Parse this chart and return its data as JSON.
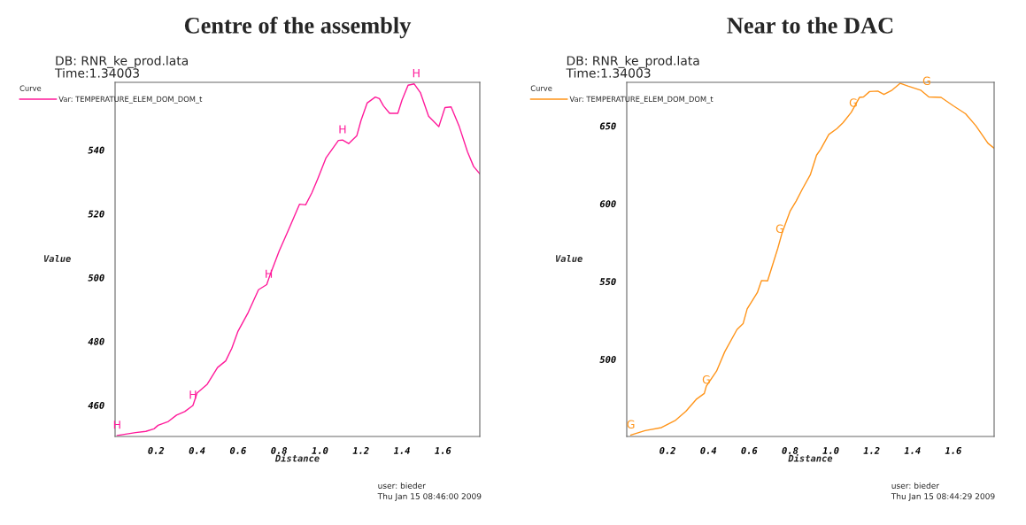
{
  "chart_data": [
    {
      "type": "line",
      "title": "Centre of the assembly",
      "xlabel": "Distance",
      "ylabel": "Value",
      "legend_title": "Curve",
      "legend": "top left",
      "grid": false,
      "xlim": [
        0,
        1.78
      ],
      "xticks": [
        0.2,
        0.4,
        0.6,
        0.8,
        {
          "value": 1,
          "label": "1.0"
        },
        1.2,
        1.4,
        1.6
      ],
      "ylim": [
        450.2,
        561.2
      ],
      "yticks": [
        460,
        480,
        500,
        520,
        540
      ],
      "x": [
        0.01,
        0.1,
        0.15,
        0.19,
        0.21,
        0.26,
        0.3,
        0.34,
        0.38,
        0.4,
        0.45,
        0.5,
        0.54,
        0.57,
        0.6,
        0.65,
        0.7,
        0.74,
        0.755,
        0.8,
        0.84,
        0.9,
        0.93,
        0.96,
        0.99,
        1.03,
        1.09,
        1.11,
        1.14,
        1.18,
        1.2,
        1.23,
        1.27,
        1.29,
        1.31,
        1.34,
        1.38,
        1.4,
        1.43,
        1.46,
        1.49,
        1.53,
        1.58,
        1.61,
        1.64,
        1.68,
        1.72,
        1.75,
        1.78
      ],
      "series": [
        {
          "name": "Var: TEMPERATURE_ELEM_DOM_DOM_t",
          "color": "#ff1a9a",
          "values": [
            450.5,
            451.4,
            451.8,
            452.6,
            453.7,
            454.9,
            456.9,
            458.0,
            459.9,
            463.8,
            466.6,
            471.8,
            473.9,
            477.9,
            483.2,
            489.1,
            496.2,
            497.8,
            500.6,
            508.2,
            514.0,
            523.0,
            522.8,
            526.5,
            531.1,
            537.6,
            543.0,
            543.1,
            542.0,
            544.5,
            549.2,
            554.7,
            556.6,
            556.1,
            553.8,
            551.5,
            551.5,
            555.6,
            560.3,
            560.7,
            558.0,
            550.6,
            547.3,
            553.3,
            553.5,
            547.3,
            539.4,
            534.8,
            532.5
          ]
        }
      ],
      "annotations": [
        "DB: RNR_ke_prod.lata",
        "Time:1.34003",
        "user: bieder",
        "Thu Jan 15 08:46:00 2009",
        {
          "text": "H",
          "x": 0.01,
          "y": 450.5
        },
        {
          "text": "H",
          "x": 0.38,
          "y": 459.9
        },
        {
          "text": "H",
          "x": 0.75,
          "y": 497.8
        },
        {
          "text": "H",
          "x": 1.11,
          "y": 543.1
        },
        {
          "text": "H",
          "x": 1.47,
          "y": 560.7
        }
      ]
    },
    {
      "type": "line",
      "title": "Near to the DAC",
      "xlabel": "Distance",
      "ylabel": "Value",
      "legend_title": "Curve",
      "legend": "top left",
      "grid": false,
      "xlim": [
        0,
        1.8
      ],
      "xticks": [
        0.2,
        0.4,
        0.6,
        0.8,
        {
          "value": 1,
          "label": "1.0"
        },
        1.2,
        1.4,
        1.6
      ],
      "ylim": [
        450.4,
        678
      ],
      "yticks": [
        500,
        550,
        600,
        650
      ],
      "x": [
        0.02,
        0.09,
        0.17,
        0.24,
        0.29,
        0.34,
        0.38,
        0.39,
        0.44,
        0.48,
        0.54,
        0.57,
        0.59,
        0.64,
        0.66,
        0.69,
        0.74,
        0.76,
        0.8,
        0.83,
        0.86,
        0.9,
        0.93,
        0.95,
        0.99,
        1.03,
        1.06,
        1.1,
        1.14,
        1.16,
        1.19,
        1.23,
        1.26,
        1.3,
        1.34,
        1.38,
        1.44,
        1.48,
        1.54,
        1.6,
        1.66,
        1.71,
        1.77,
        1.8
      ],
      "series": [
        {
          "name": "Var: TEMPERATURE_ELEM_DOM_DOM_t",
          "color": "#ff9419",
          "values": [
            451.3,
            454.2,
            456.1,
            460.9,
            466.6,
            474.2,
            478.1,
            482.8,
            492.4,
            504.8,
            519.1,
            522.9,
            532.4,
            542.9,
            550.6,
            550.4,
            571.3,
            580.8,
            595.1,
            601.7,
            609.3,
            618.8,
            631.2,
            635.0,
            644.5,
            648.3,
            652.1,
            658.7,
            668.3,
            668.6,
            672.1,
            672.4,
            670.2,
            673.0,
            677.4,
            675.5,
            673.0,
            668.6,
            668.3,
            662.9,
            657.8,
            650.2,
            638.8,
            635.6
          ]
        }
      ],
      "annotations": [
        "DB: RNR_ke_prod.lata",
        "Time:1.34003",
        "user: bieder",
        "Thu Jan 15 08:44:29 2009",
        {
          "text": "G",
          "x": 0.02,
          "y": 451.3
        },
        {
          "text": "G",
          "x": 0.39,
          "y": 480.0
        },
        {
          "text": "G",
          "x": 0.75,
          "y": 577.0
        },
        {
          "text": "G",
          "x": 1.11,
          "y": 658.0
        },
        {
          "text": "G",
          "x": 1.47,
          "y": 672.0
        }
      ]
    }
  ]
}
